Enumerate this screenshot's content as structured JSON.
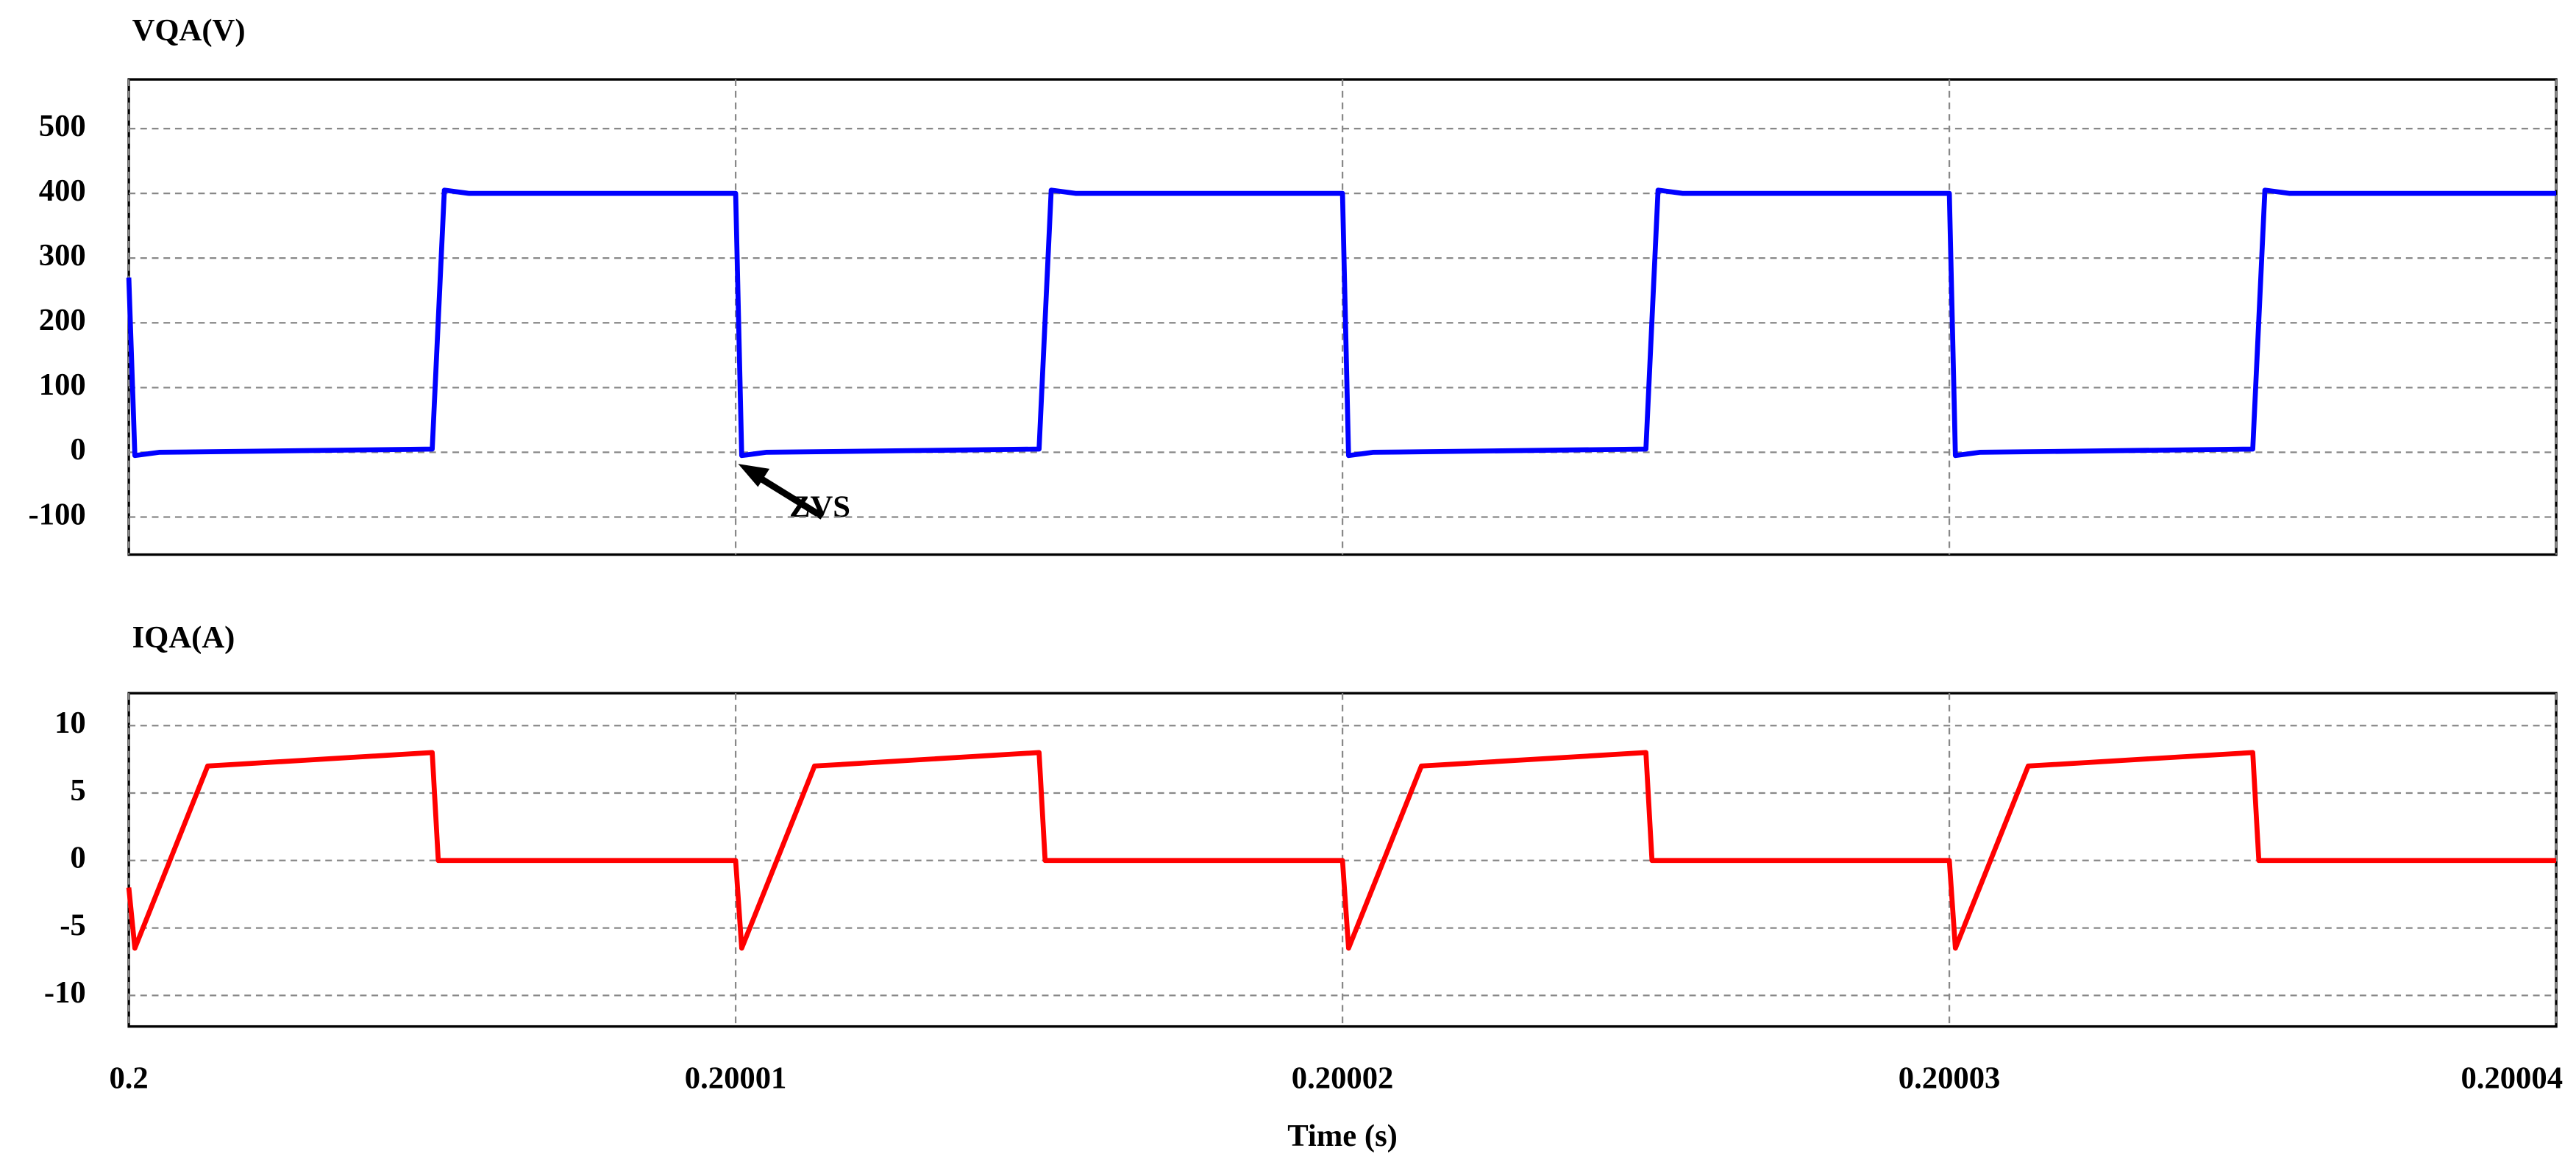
{
  "chart_data": [
    {
      "type": "line",
      "x": [
        0.2,
        0.2000001,
        0.2000005,
        0.200005,
        0.2000052,
        0.2000056,
        0.20001,
        0.2000101,
        0.2000105,
        0.200015,
        0.2000152,
        0.2000156,
        0.20002,
        0.2000201,
        0.2000205,
        0.200025,
        0.2000252,
        0.2000256,
        0.20003,
        0.2000301,
        0.2000305,
        0.200035,
        0.2000352,
        0.2000356,
        0.20004
      ],
      "series": [
        {
          "name": "VQA(V)",
          "color": "#0000ff",
          "values": [
            270,
            -5,
            0,
            5,
            405,
            400,
            400,
            -5,
            0,
            5,
            405,
            400,
            400,
            -5,
            0,
            5,
            405,
            400,
            400,
            -5,
            0,
            5,
            405,
            400,
            400
          ]
        }
      ],
      "xlim": [
        0.2,
        0.20004
      ],
      "xticks": [
        0.2,
        0.20001,
        0.20002,
        0.20003,
        0.20004
      ],
      "ylim": [
        -158,
        576
      ],
      "yticks": [
        -100,
        0,
        100,
        200,
        300,
        400,
        500
      ],
      "grid": true,
      "annotation": "ZVS"
    },
    {
      "type": "line",
      "x": [
        0.2,
        0.2000001,
        0.2000013,
        0.200005,
        0.2000051,
        0.20001,
        0.2000101,
        0.2000113,
        0.200015,
        0.2000151,
        0.20002,
        0.2000201,
        0.2000213,
        0.200025,
        0.2000251,
        0.20003,
        0.2000301,
        0.2000313,
        0.200035,
        0.2000351,
        0.20004
      ],
      "series": [
        {
          "name": "IQA(A)",
          "color": "#ff0000",
          "values": [
            -2,
            -6.5,
            7,
            8,
            0,
            0,
            -6.5,
            7,
            8,
            0,
            0,
            -6.5,
            7,
            8,
            0,
            0,
            -6.5,
            7,
            8,
            0,
            0
          ]
        }
      ],
      "xlim": [
        0.2,
        0.20004
      ],
      "xticks": [
        0.2,
        0.20001,
        0.20002,
        0.20003,
        0.20004
      ],
      "ylim": [
        -12.3,
        12.4
      ],
      "yticks": [
        -10,
        -5,
        0,
        5,
        10
      ],
      "grid": true,
      "xlabel": "Time (s)"
    }
  ]
}
